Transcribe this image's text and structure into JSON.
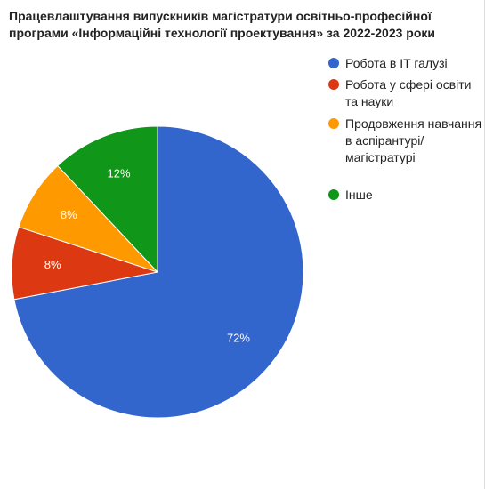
{
  "chart_data": {
    "type": "pie",
    "title": "Працевлаштування випускників магістратури освітньо-професійної програми «Інформаційні технології проектування» за 2022-2023 роки",
    "categories": [
      "Робота в IT галузі",
      "Робота у сфері освіти та науки",
      "Продовження навчання в аспірантурі/магістратурі",
      "Інше"
    ],
    "values": [
      72,
      8,
      8,
      12
    ],
    "value_labels": [
      "72%",
      "8%",
      "8%",
      "12%"
    ],
    "colors": [
      "#3366cc",
      "#dc3912",
      "#ff9900",
      "#109618"
    ],
    "legend": "right"
  }
}
